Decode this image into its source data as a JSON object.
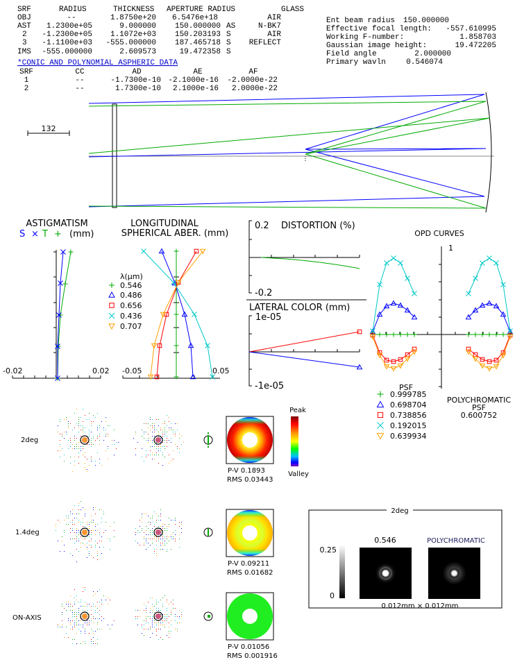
{
  "lens_table": {
    "headers": [
      "SRF",
      "RADIUS",
      "THICKNESS",
      "APERTURE RADIUS",
      "GLASS"
    ],
    "rows": [
      {
        "srf": "OBJ",
        "radius": "--",
        "thickness": "1.8750e+20",
        "aperture": "6.5476e+18",
        "flag": "",
        "glass": "AIR"
      },
      {
        "srf": "AST",
        "radius": "1.2300e+05",
        "thickness": "9.000000",
        "aperture": "150.000000",
        "flag": "AS",
        "glass": "N-BK7"
      },
      {
        "srf": "2",
        "radius": "-1.2300e+05",
        "thickness": "1.1072e+03",
        "aperture": "150.203193",
        "flag": "S",
        "glass": "AIR"
      },
      {
        "srf": "3",
        "radius": "-1.1100e+03",
        "thickness": "-555.000000",
        "aperture": "187.465718",
        "flag": "S",
        "glass": "REFLECT"
      },
      {
        "srf": "IMS",
        "radius": "-555.000000",
        "thickness": "2.609573",
        "aperture": "19.472358",
        "flag": "S",
        "glass": ""
      }
    ]
  },
  "asphere": {
    "link": "*CONIC AND POLYNOMIAL ASPHERIC DATA",
    "headers": [
      "SRF",
      "CC",
      "AD",
      "AE",
      "AF"
    ],
    "rows": [
      {
        "srf": "1",
        "cc": "--",
        "ad": "-1.7300e-10",
        "ae": "-2.1000e-16",
        "af": "-2.0000e-22"
      },
      {
        "srf": "2",
        "cc": "--",
        "ad": "1.7300e-10",
        "ae": "2.1000e-16",
        "af": "2.0000e-22"
      }
    ]
  },
  "system_info": [
    {
      "label": "Ent beam radius",
      "value": "150.000000"
    },
    {
      "label": "Effective focal length:",
      "value": "-557.610995"
    },
    {
      "label": "Working F-number:",
      "value": "1.858703"
    },
    {
      "label": "Gaussian image height:",
      "value": "19.472205"
    },
    {
      "label": "Field angle",
      "value": "2.000000"
    },
    {
      "label": "Primary wavln",
      "value": "0.546074"
    }
  ],
  "layout": {
    "scale_label": "132"
  },
  "astigmatism": {
    "title": "ASTIGMATISM",
    "s_label": "S",
    "s_mark": "×",
    "t_label": "T",
    "t_mark": "+",
    "units": "(mm)",
    "xmin": "-0.02",
    "xmax": "0.02"
  },
  "spherical": {
    "title1": "LONGITUDINAL",
    "title2": "SPHERICAL ABER. (mm)",
    "xmin": "-0.05",
    "xmax": "0.05",
    "legend_title": "λ(μm)",
    "wavelengths": [
      "0.546",
      "0.486",
      "0.656",
      "0.436",
      "0.707"
    ]
  },
  "distortion": {
    "title": "DISTORTION (%)",
    "ymax": "0.2",
    "ymin": "-0.2"
  },
  "lateral_color": {
    "title": "LATERAL COLOR (mm)",
    "ymax": "1e-05",
    "ymin": "-1e-05"
  },
  "opd": {
    "title": "OPD CURVES",
    "ymax": "1",
    "psf_title": "PSF",
    "psf_values": [
      "0.999785",
      "0.698704",
      "0.738856",
      "0.192015",
      "0.639934"
    ],
    "poly_title1": "POLYCHROMATIC",
    "poly_title2": "PSF",
    "poly_value": "0.600752"
  },
  "colors": {
    "c546": "#00aa00",
    "c486": "#0000ff",
    "c656": "#ff0000",
    "c436": "#00c8c8",
    "c707": "#ffa000"
  },
  "spots": {
    "fields": [
      {
        "label": "2deg",
        "pv": "P-V 0.1893",
        "rms": "RMS 0.03443"
      },
      {
        "label": "1.4deg",
        "pv": "P-V 0.09211",
        "rms": "RMS 0.01682"
      },
      {
        "label": "ON-AXIS",
        "pv": "P-V 0.01056",
        "rms": "RMS 0.001916"
      }
    ],
    "peak": "Peak",
    "valley": "Valley"
  },
  "psf_box": {
    "field": "2deg",
    "mono_label": "0.546",
    "poly_label": "POLYCHROMATIC",
    "scale_max": "0.25",
    "scale_min": "0",
    "extent": "0.012mm × 0.012mm"
  }
}
